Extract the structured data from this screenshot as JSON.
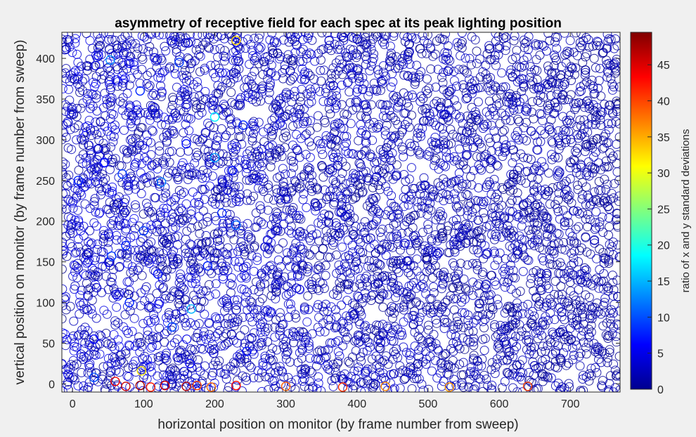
{
  "chart_data": {
    "type": "scatter",
    "title": "asymmetry of receptive field for each spec at its peak lighting position",
    "xlabel": "horizontal position on monitor (by frame number from sweep)",
    "ylabel": "vertical position on monitor (by frame number from sweep)",
    "xlim": [
      -15,
      770
    ],
    "ylim": [
      -10,
      432
    ],
    "xticks": [
      0,
      100,
      200,
      300,
      400,
      500,
      600,
      700
    ],
    "yticks": [
      0,
      50,
      100,
      150,
      200,
      250,
      300,
      350,
      400
    ],
    "marker": "open-circle",
    "colormap": "jet",
    "colorbar": {
      "label": "ratio of x and y standard deviations",
      "range": [
        0,
        49.5
      ],
      "ticks": [
        0,
        5,
        10,
        15,
        20,
        25,
        30,
        35,
        40,
        45
      ]
    },
    "series": [
      {
        "points": [
          {
            "x": 230,
            "y": 422,
            "c": 33
          },
          {
            "x": 97,
            "y": 16,
            "c": 32
          },
          {
            "x": 200,
            "y": 278,
            "c": 14
          },
          {
            "x": 167,
            "y": 92,
            "c": 15
          },
          {
            "x": 53,
            "y": 398,
            "c": 13
          },
          {
            "x": 100,
            "y": 188,
            "c": 9
          },
          {
            "x": 125,
            "y": 248,
            "c": 12
          },
          {
            "x": 95,
            "y": 360,
            "c": 8
          },
          {
            "x": 55,
            "y": 157,
            "c": 9
          },
          {
            "x": 30,
            "y": 8,
            "c": 10
          },
          {
            "x": 140,
            "y": 70,
            "c": 10
          },
          {
            "x": 150,
            "y": 395,
            "c": 9
          },
          {
            "x": 230,
            "y": 195,
            "c": 11
          },
          {
            "x": 70,
            "y": 258,
            "c": 9
          },
          {
            "x": 8,
            "y": 250,
            "c": 8
          },
          {
            "x": 45,
            "y": 272,
            "c": 7
          },
          {
            "x": 160,
            "y": 295,
            "c": 7
          },
          {
            "x": 200,
            "y": 328,
            "c": 18
          },
          {
            "x": 240,
            "y": 318,
            "c": 8
          },
          {
            "x": 120,
            "y": 135,
            "c": 7
          },
          {
            "x": 75,
            "y": 170,
            "c": 8
          },
          {
            "x": 190,
            "y": 145,
            "c": 8
          },
          {
            "x": 210,
            "y": 210,
            "c": 8
          },
          {
            "x": 225,
            "y": 262,
            "c": 7
          },
          {
            "x": 80,
            "y": 100,
            "c": 8
          },
          {
            "x": 30,
            "y": 55,
            "c": 6
          },
          {
            "x": 245,
            "y": 40,
            "c": 7
          },
          {
            "x": 165,
            "y": 25,
            "c": 6
          },
          {
            "x": 60,
            "y": 3,
            "c": 44
          },
          {
            "x": 75,
            "y": -3,
            "c": 46
          },
          {
            "x": 95,
            "y": -2,
            "c": 48
          },
          {
            "x": 110,
            "y": -4,
            "c": 42
          },
          {
            "x": 130,
            "y": -2,
            "c": 45
          },
          {
            "x": 160,
            "y": -3,
            "c": 47
          },
          {
            "x": 175,
            "y": -2,
            "c": 40
          },
          {
            "x": 195,
            "y": -4,
            "c": 38
          },
          {
            "x": 230,
            "y": -2,
            "c": 43
          },
          {
            "x": 300,
            "y": -3,
            "c": 39
          },
          {
            "x": 380,
            "y": -4,
            "c": 41
          },
          {
            "x": 440,
            "y": -3,
            "c": 37
          },
          {
            "x": 530,
            "y": -4,
            "c": 36
          },
          {
            "x": 640,
            "y": -3,
            "c": 40
          }
        ]
      }
    ]
  }
}
